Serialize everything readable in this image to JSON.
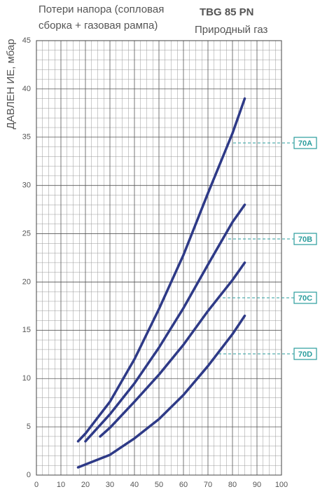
{
  "chart_data": {
    "type": "line",
    "title_lines": [
      "Потери напора (сопловая",
      "сборка + газовая рампа)"
    ],
    "model": "TBG 85 PN",
    "fuel": "Природный газ",
    "y_label": "ДАВЛЕН ИЕ, мбар",
    "xlim": [
      0,
      100
    ],
    "xticks": [
      0,
      10,
      20,
      30,
      40,
      50,
      60,
      70,
      80,
      90,
      100
    ],
    "ylim": [
      0,
      45
    ],
    "yticks": [
      0,
      5,
      10,
      15,
      20,
      25,
      30,
      35,
      40,
      45
    ],
    "grid": true,
    "series": [
      {
        "name": "70A",
        "color": "#2e3a87",
        "x": [
          17,
          20,
          30,
          40,
          50,
          60,
          70,
          80,
          85
        ],
        "values": [
          3.5,
          4.3,
          7.6,
          12,
          17.2,
          22.8,
          29.2,
          35.4,
          39
        ]
      },
      {
        "name": "70B",
        "color": "#2e3a87",
        "x": [
          20,
          30,
          40,
          50,
          60,
          70,
          80,
          85
        ],
        "values": [
          3.5,
          6.3,
          9.5,
          13.2,
          17.3,
          21.8,
          26.2,
          28
        ]
      },
      {
        "name": "70C",
        "color": "#2e3a87",
        "x": [
          26,
          30,
          40,
          50,
          60,
          70,
          80,
          85
        ],
        "values": [
          4,
          4.9,
          7.6,
          10.4,
          13.5,
          17,
          20.2,
          22
        ]
      },
      {
        "name": "70D",
        "color": "#2e3a87",
        "x": [
          17,
          20,
          30,
          40,
          50,
          60,
          70,
          80,
          85
        ],
        "values": [
          0.8,
          1.1,
          2.1,
          3.8,
          5.8,
          8.3,
          11.3,
          14.6,
          16.5
        ]
      }
    ]
  }
}
